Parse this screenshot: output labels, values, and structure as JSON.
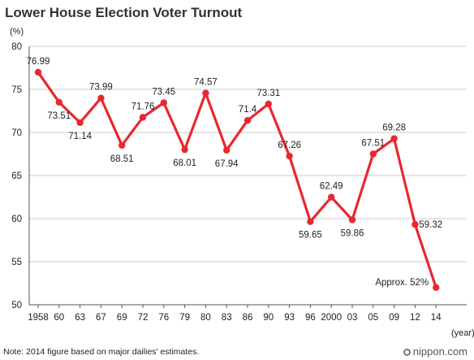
{
  "title": "Lower House Election Voter Turnout",
  "note": "Note: 2014 figure based on major dailies' estimates.",
  "brand": {
    "text": "nippon.com",
    "icon": "globe-icon"
  },
  "colors": {
    "line": "#e8282e",
    "grid": "#bbbbbb",
    "axis": "#555555",
    "text": "#222222"
  },
  "chart_data": {
    "type": "line",
    "title": "Lower House Election Voter Turnout",
    "ylabel": "(%)",
    "xlabel": "(year)",
    "ylim": [
      50,
      80
    ],
    "yticks": [
      50,
      55,
      60,
      65,
      70,
      75,
      80
    ],
    "grid": true,
    "categories": [
      "1958",
      "60",
      "63",
      "67",
      "69",
      "72",
      "76",
      "79",
      "80",
      "83",
      "86",
      "90",
      "93",
      "96",
      "2000",
      "03",
      "05",
      "09",
      "12",
      "14"
    ],
    "series": [
      {
        "values": [
          76.99,
          73.51,
          71.14,
          73.99,
          68.51,
          71.76,
          73.45,
          68.01,
          74.57,
          67.94,
          71.4,
          73.31,
          67.26,
          59.65,
          62.49,
          59.86,
          67.51,
          69.28,
          59.32,
          52
        ]
      }
    ],
    "data_labels": [
      "76.99",
      "73.51",
      "71.14",
      "73.99",
      "68.51",
      "71.76",
      "73.45",
      "68.01",
      "74.57",
      "67.94",
      "71.4",
      "73.31",
      "67.26",
      "59.65",
      "62.49",
      "59.86",
      "67.51",
      "69.28",
      "59.32",
      "Approx. 52%"
    ]
  }
}
